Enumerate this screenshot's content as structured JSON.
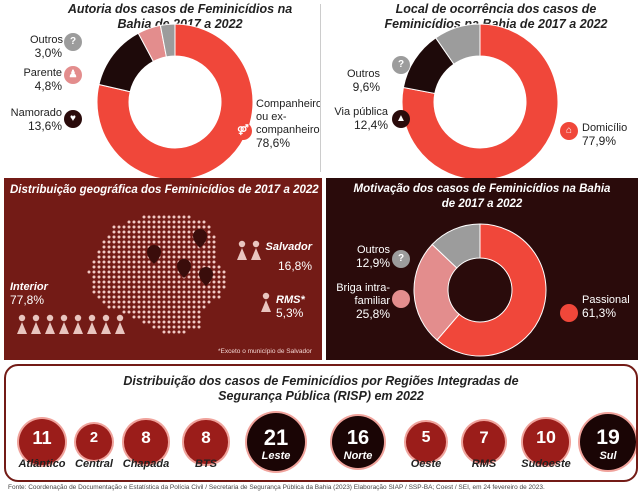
{
  "colors": {
    "red": "#f0473a",
    "dark": "#1e0a0a",
    "pink": "#e38d8d",
    "gray": "#9c9c9c",
    "maroon": "#731b16",
    "darkbg": "#2a0b0b"
  },
  "autoria": {
    "title_l1": "Autoria dos casos de Feminicídios na",
    "title_l2": "Bahia de 2017 a 2022",
    "label_outros": "Outros",
    "pct_outros": "3,0%",
    "label_parente": "Parente",
    "pct_parente": "4,8%",
    "label_namorado": "Namorado",
    "pct_namorado": "13,6%",
    "label_comp_1": "Companheiro",
    "label_comp_2": "ou ex-",
    "label_comp_3": "companheiro",
    "pct_comp": "78,6%"
  },
  "local": {
    "title_l1": "Local de ocorrência dos casos de",
    "title_l2": "Feminicídios na Bahia de 2017 a 2022",
    "label_outros": "Outros",
    "pct_outros": "9,6%",
    "label_via": "Via pública",
    "pct_via": "12,4%",
    "label_dom": "Domicílio",
    "pct_dom": "77,9%"
  },
  "geo": {
    "title": "Distribuição geográfica dos Feminicídios de 2017 a 2022",
    "label_salvador": "Salvador",
    "pct_salvador": "16,8%",
    "label_interior": "Interior",
    "pct_interior": "77,8%",
    "label_rms": "RMS*",
    "pct_rms": "5,3%",
    "footnote": "*Exceto o município de Salvador"
  },
  "motivacao": {
    "title_l1": "Motivação dos casos de Feminicídios na Bahia",
    "title_l2": "de 2017 a 2022",
    "label_outros": "Outros",
    "pct_outros": "12,9%",
    "label_briga_1": "Briga intra-",
    "label_briga_2": "familiar",
    "pct_briga": "25,8%",
    "label_passional": "Passional",
    "pct_passional": "61,3%"
  },
  "risp": {
    "title_l1": "Distribuição dos casos de Feminicídios por Regiões Integradas de",
    "title_l2": "Segurança Pública (RISP)  em 2022"
  },
  "footer": "Fonte: Coordenação de Documentação e Estatística da Polícia Civil / Secretaria de Segurança Pública da Bahia (2023) Elaboração SIAP / SSP-BA; Coest / SEI, em 24 fevereiro de 2023.",
  "chart_data": [
    {
      "type": "pie",
      "title": "Autoria dos casos de Feminicídios na Bahia de 2017 a 2022",
      "categories": [
        "Companheiro ou ex-companheiro",
        "Namorado",
        "Parente",
        "Outros"
      ],
      "values": [
        78.6,
        13.6,
        4.8,
        3.0
      ]
    },
    {
      "type": "pie",
      "title": "Local de ocorrência dos casos de Feminicídios na Bahia de 2017 a 2022",
      "categories": [
        "Domicílio",
        "Via pública",
        "Outros"
      ],
      "values": [
        77.9,
        12.4,
        9.6
      ]
    },
    {
      "type": "table",
      "title": "Distribuição geográfica dos Feminicídios de 2017 a 2022",
      "categories": [
        "Interior",
        "Salvador",
        "RMS*"
      ],
      "values": [
        77.8,
        16.8,
        5.3
      ]
    },
    {
      "type": "pie",
      "title": "Motivação dos casos de Feminicídios na Bahia de 2017 a 2022",
      "categories": [
        "Passional",
        "Briga intra-familiar",
        "Outros"
      ],
      "values": [
        61.3,
        25.8,
        12.9
      ]
    },
    {
      "type": "bar",
      "title": "Distribuição dos casos de Feminicídios por Regiões Integradas de Segurança Pública (RISP) em 2022",
      "categories": [
        "Atlântico",
        "Central",
        "Chapada",
        "BTS",
        "Leste",
        "Norte",
        "Oeste",
        "RMS",
        "Sudoeste",
        "Sul"
      ],
      "values": [
        11,
        2,
        8,
        8,
        21,
        16,
        5,
        7,
        10,
        19
      ]
    }
  ]
}
